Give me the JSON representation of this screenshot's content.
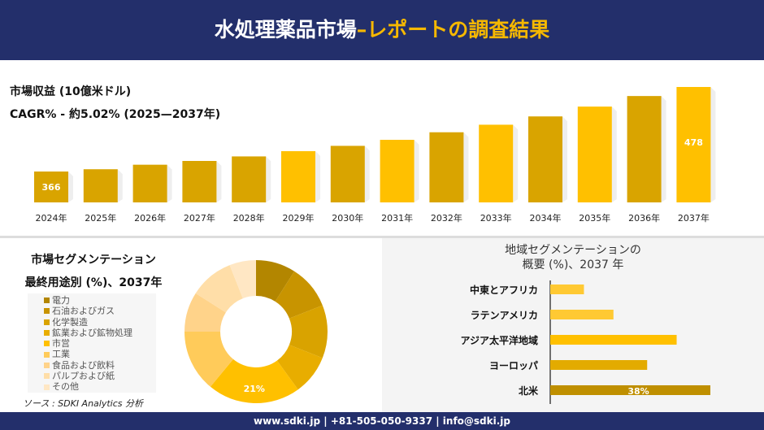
{
  "header": {
    "title_main": "水処理薬品市場",
    "title_accent": "–レポートの調査結果"
  },
  "revenue": {
    "label": "市場収益 (10億米ドル)",
    "cagr": "CAGR% - 約5.02% (2025—2037年)"
  },
  "chart_data": [
    {
      "type": "bar",
      "title": "",
      "categories": [
        "2024年",
        "2025年",
        "2026年",
        "2027年",
        "2028年",
        "2029年",
        "2030年",
        "2031年",
        "2032年",
        "2033年",
        "2034年",
        "2035年",
        "2036年",
        "2037年"
      ],
      "values": [
        366,
        369,
        375,
        380,
        386,
        393,
        400,
        408,
        418,
        428,
        439,
        452,
        466,
        478
      ],
      "data_labels": {
        "0": "366",
        "13": "478"
      },
      "color": "#d9a400",
      "highlight_color": "#ffc000"
    },
    {
      "type": "pie",
      "title": "市場セグメンテーション",
      "subtitle": "最終用途別 (%)、2037年",
      "categories": [
        "電力",
        "石油およびガス",
        "化学製造",
        "鉱業および鉱物処理",
        "市営",
        "工業",
        "食品および飲料",
        "パルプおよび紙",
        "その他"
      ],
      "values": [
        9,
        10,
        12,
        9,
        21,
        14,
        9,
        10,
        6
      ],
      "colors": [
        "#b38600",
        "#c89400",
        "#d9a300",
        "#e8ad00",
        "#ffc000",
        "#ffcb5a",
        "#ffd38a",
        "#ffdea8",
        "#ffe7c4"
      ],
      "data_labels": {
        "4": "21%"
      }
    },
    {
      "type": "bar",
      "orientation": "horizontal",
      "title": "地域セグメンテーションの\n概要 (%)、2037 年",
      "categories": [
        "中東とアフリカ",
        "ラテンアメリカ",
        "アジア太平洋地域",
        "ヨーロッパ",
        "北米"
      ],
      "values": [
        8,
        15,
        30,
        23,
        38
      ],
      "colors": [
        "#ffc933",
        "#ffc933",
        "#ffc000",
        "#e3ab00",
        "#bf8f00"
      ],
      "data_labels": {
        "4": "38%"
      }
    }
  ],
  "source": "ソース : SDKI Analytics 分析",
  "footer": "www.sdki.jp | +81-505-050-9337 | info@sdki.jp"
}
